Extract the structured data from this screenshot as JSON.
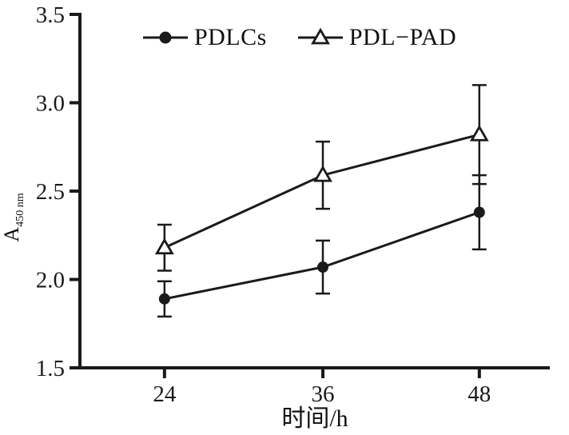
{
  "chart_data": {
    "type": "line",
    "x": [
      24,
      36,
      48
    ],
    "xlabel": "时间/h",
    "ylabel_base": "A",
    "ylabel_sub": "450 nm",
    "ylim": [
      1.5,
      3.5
    ],
    "yticks": [
      1.5,
      2.0,
      2.5,
      3.0,
      3.5
    ],
    "ytick_labels": [
      "1.5",
      "2.0",
      "2.5",
      "3.0",
      "3.5"
    ],
    "xtick_labels": [
      "24",
      "36",
      "48"
    ],
    "grid": false,
    "legend_position": "top-inside",
    "line_color": "#1a1a1a",
    "series": [
      {
        "name": "PDLCs",
        "marker": "circle-filled",
        "values": [
          1.89,
          2.07,
          2.38
        ],
        "errors": [
          0.1,
          0.15,
          0.21
        ]
      },
      {
        "name": "PDL−PAD",
        "marker": "triangle-open",
        "values": [
          2.18,
          2.59,
          2.82
        ],
        "errors": [
          0.13,
          0.19,
          0.28
        ]
      }
    ]
  }
}
